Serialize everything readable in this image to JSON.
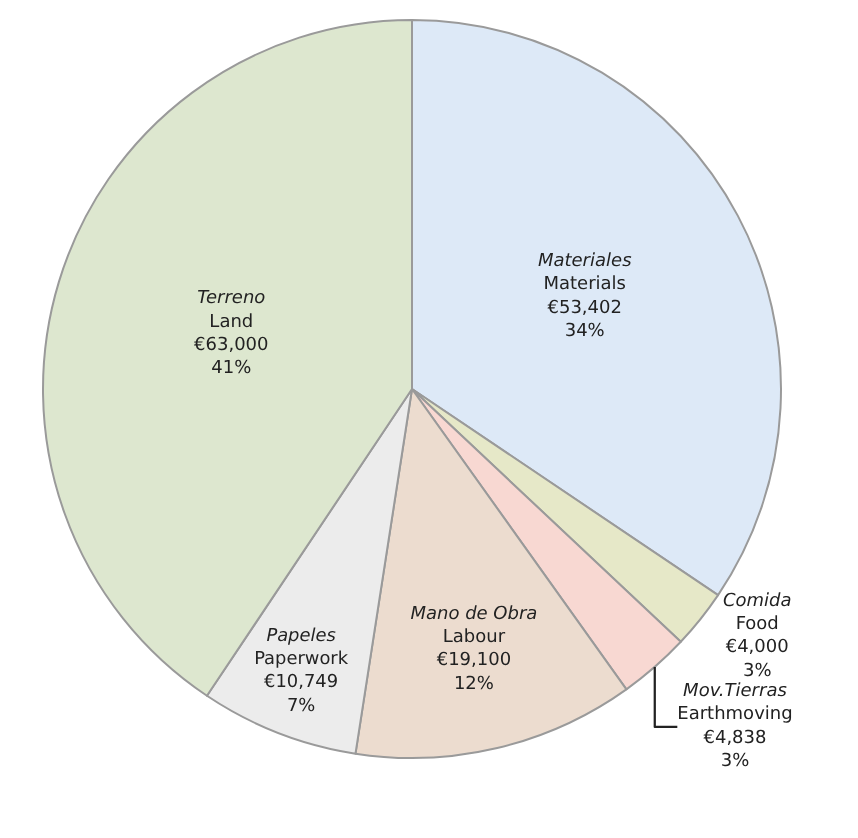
{
  "chart_data": {
    "type": "pie",
    "categories": [
      "Materiales\nMaterials",
      "Comida\nFood",
      "Mov.Tierras\nEarthmoving",
      "Mano de Obra\nLabour",
      "Papeles\nPaperwork",
      "Terreno\nLand"
    ],
    "values": [
      53402,
      4000,
      4838,
      19100,
      10749,
      63000
    ],
    "value_labels": [
      "€53,402\n34%",
      "€4,000\n3%",
      "€4,838\n3%",
      "€19,100\n12%",
      "€10,749\n7%",
      "€63,000\n41%"
    ],
    "colors": [
      "#dde9f7",
      "#e6e8c8",
      "#f8d8d2",
      "#ecdccf",
      "#ececec",
      "#dde7cf"
    ],
    "legend": false
  }
}
